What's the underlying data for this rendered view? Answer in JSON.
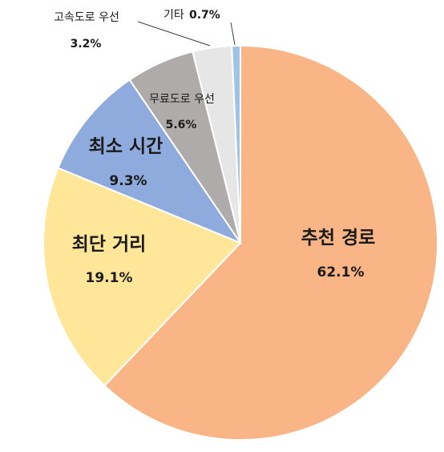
{
  "chart_data": {
    "type": "pie",
    "title": "",
    "slices": [
      {
        "label": "추천 경로",
        "value": 62.1,
        "value_label": "62.1%",
        "color": "#F9B585"
      },
      {
        "label": "최단 거리",
        "value": 19.1,
        "value_label": "19.1%",
        "color": "#FFE699"
      },
      {
        "label": "최소 시간",
        "value": 9.3,
        "value_label": "9.3%",
        "color": "#8FAADC"
      },
      {
        "label": "무료도로 우선",
        "value": 5.6,
        "value_label": "5.6%",
        "color": "#AFABAB"
      },
      {
        "label": "고속도로 우선",
        "value": 3.2,
        "value_label": "3.2%",
        "color": "#E7E6E6"
      },
      {
        "label": "기타",
        "value": 0.7,
        "value_label": "0.7%",
        "color": "#9DC3E6"
      }
    ],
    "start_angle_deg": 0,
    "direction": "clockwise",
    "border_color": "#ffffff"
  }
}
